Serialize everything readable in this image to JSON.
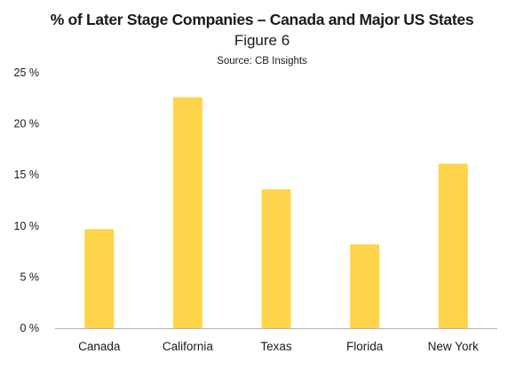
{
  "header": {
    "title": "% of Later Stage Companies – Canada and Major US States",
    "figure": "Figure 6",
    "source": "Source: CB Insights"
  },
  "chart_data": {
    "type": "bar",
    "categories": [
      "Canada",
      "California",
      "Texas",
      "Florida",
      "New York"
    ],
    "values": [
      9.7,
      22.6,
      13.6,
      8.2,
      16.1
    ],
    "ylim": [
      0,
      25
    ],
    "yticks": [
      0,
      5,
      10,
      15,
      20,
      25
    ],
    "ytick_labels": [
      "0 %",
      "5 %",
      "10 %",
      "15 %",
      "20 %",
      "25 %"
    ],
    "grid": false,
    "bar_color": "#FDD44A",
    "axis_color": "#b3b3b3",
    "legend": "none"
  }
}
